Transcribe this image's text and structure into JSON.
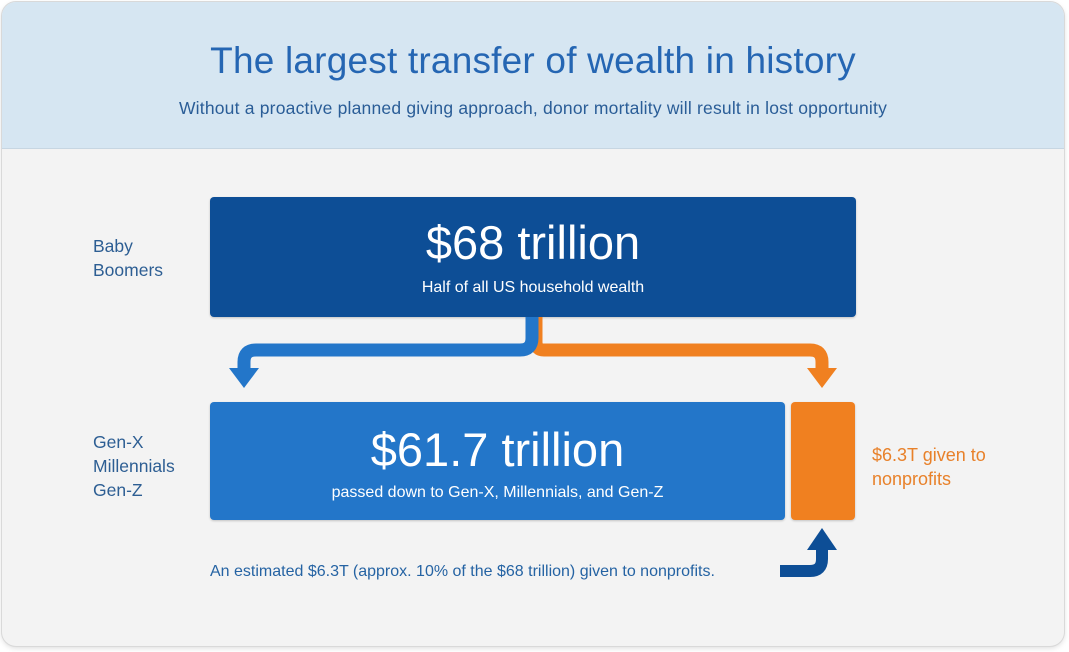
{
  "header": {
    "title": "The largest transfer of wealth in history",
    "subtitle": "Without a proactive planned giving approach, donor mortality will result in lost opportunity"
  },
  "top_group": {
    "label_lines": [
      "Baby",
      "Boomers"
    ],
    "amount": "$68 trillion",
    "description": "Half of all US household wealth"
  },
  "bottom_group": {
    "label_lines": [
      "Gen-X",
      "Millennials",
      "Gen-Z"
    ],
    "amount": "$61.7 trillion",
    "description": "passed down to Gen-X, Millennials, and Gen-Z"
  },
  "nonprofit": {
    "label_lines": [
      "$6.3T given to",
      "nonprofits"
    ]
  },
  "footnote": "An estimated $6.3T (approx. 10% of the $68 trillion) given to nonprofits.",
  "colors": {
    "dark_blue": "#0d4e96",
    "mid_blue": "#2376c9",
    "orange": "#f08020",
    "header_bg": "#d6e6f2"
  }
}
